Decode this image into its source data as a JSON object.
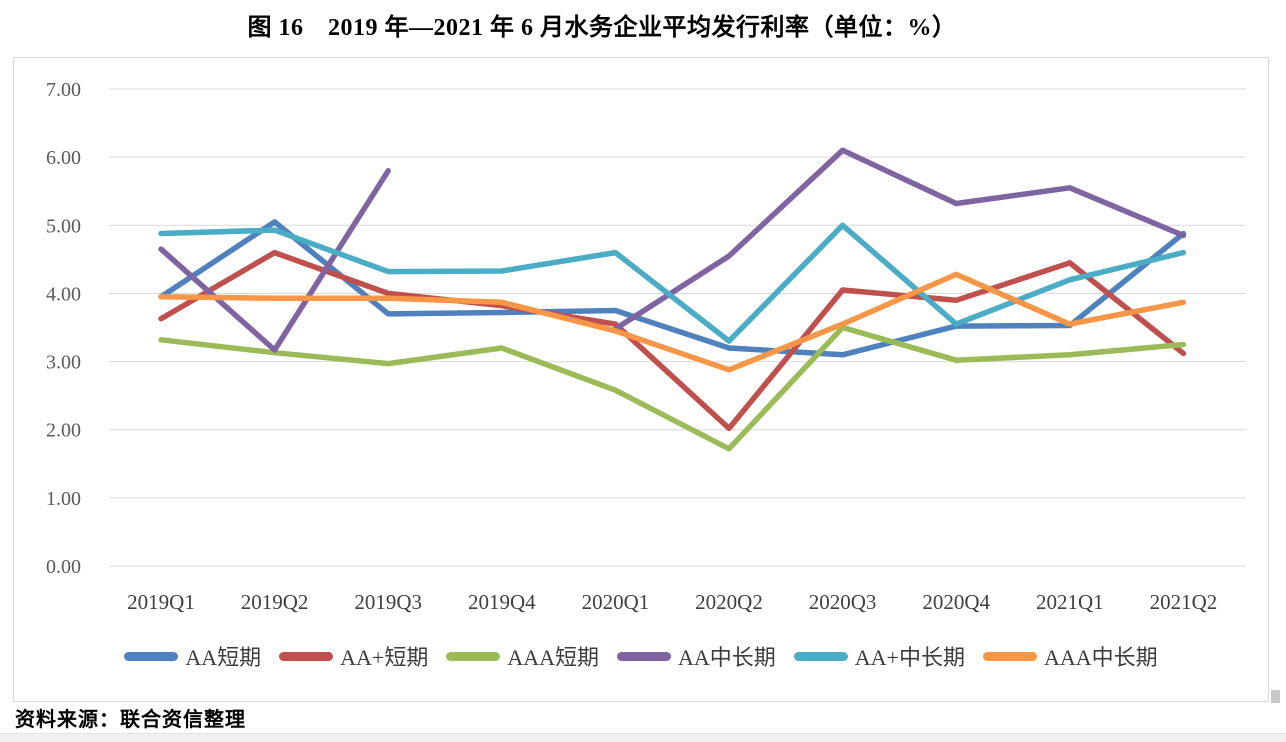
{
  "page": {
    "title": "图 16　2019 年—2021 年 6 月水务企业平均发行利率（单位：%）",
    "source_note": "资料来源：联合资信整理"
  },
  "chart_data": {
    "type": "line",
    "title": "图 16　2019 年—2021 年 6 月水务企业平均发行利率（单位：%）",
    "unit": "%",
    "categories": [
      "2019Q1",
      "2019Q2",
      "2019Q3",
      "2019Q4",
      "2020Q1",
      "2020Q2",
      "2020Q3",
      "2020Q4",
      "2021Q1",
      "2021Q2"
    ],
    "series": [
      {
        "name": "AA短期",
        "color": "#4F81BD",
        "values": [
          3.95,
          5.05,
          3.7,
          3.72,
          3.75,
          3.2,
          3.1,
          3.52,
          3.53,
          4.88
        ]
      },
      {
        "name": "AA+短期",
        "color": "#C0504D",
        "values": [
          3.63,
          4.6,
          4.0,
          3.82,
          3.55,
          2.02,
          4.05,
          3.9,
          4.45,
          3.12
        ]
      },
      {
        "name": "AAA短期",
        "color": "#9BBB59",
        "values": [
          3.32,
          3.13,
          2.97,
          3.2,
          2.58,
          1.72,
          3.5,
          3.02,
          3.1,
          3.25
        ]
      },
      {
        "name": "AA中长期",
        "color": "#8064A2",
        "values": [
          4.65,
          3.17,
          5.8,
          null,
          3.48,
          4.55,
          6.1,
          5.32,
          5.55,
          4.85
        ]
      },
      {
        "name": "AA+中长期",
        "color": "#4BACC6",
        "values": [
          4.88,
          4.93,
          4.32,
          4.33,
          4.6,
          3.3,
          5.0,
          3.55,
          4.2,
          4.6
        ]
      },
      {
        "name": "AAA中长期",
        "color": "#F79646",
        "values": [
          3.95,
          3.93,
          3.93,
          3.87,
          3.45,
          2.88,
          3.55,
          4.28,
          3.55,
          3.87
        ]
      }
    ],
    "ylim": [
      0,
      7
    ],
    "ytick_step": 1,
    "ytick_labels": [
      "0.00",
      "1.00",
      "2.00",
      "3.00",
      "4.00",
      "5.00",
      "6.00",
      "7.00"
    ],
    "grid": true,
    "gridline_color": "#d9d9d9",
    "axis_label_color": "#595959",
    "category_label_color": "#404040",
    "legend_position": "bottom"
  }
}
